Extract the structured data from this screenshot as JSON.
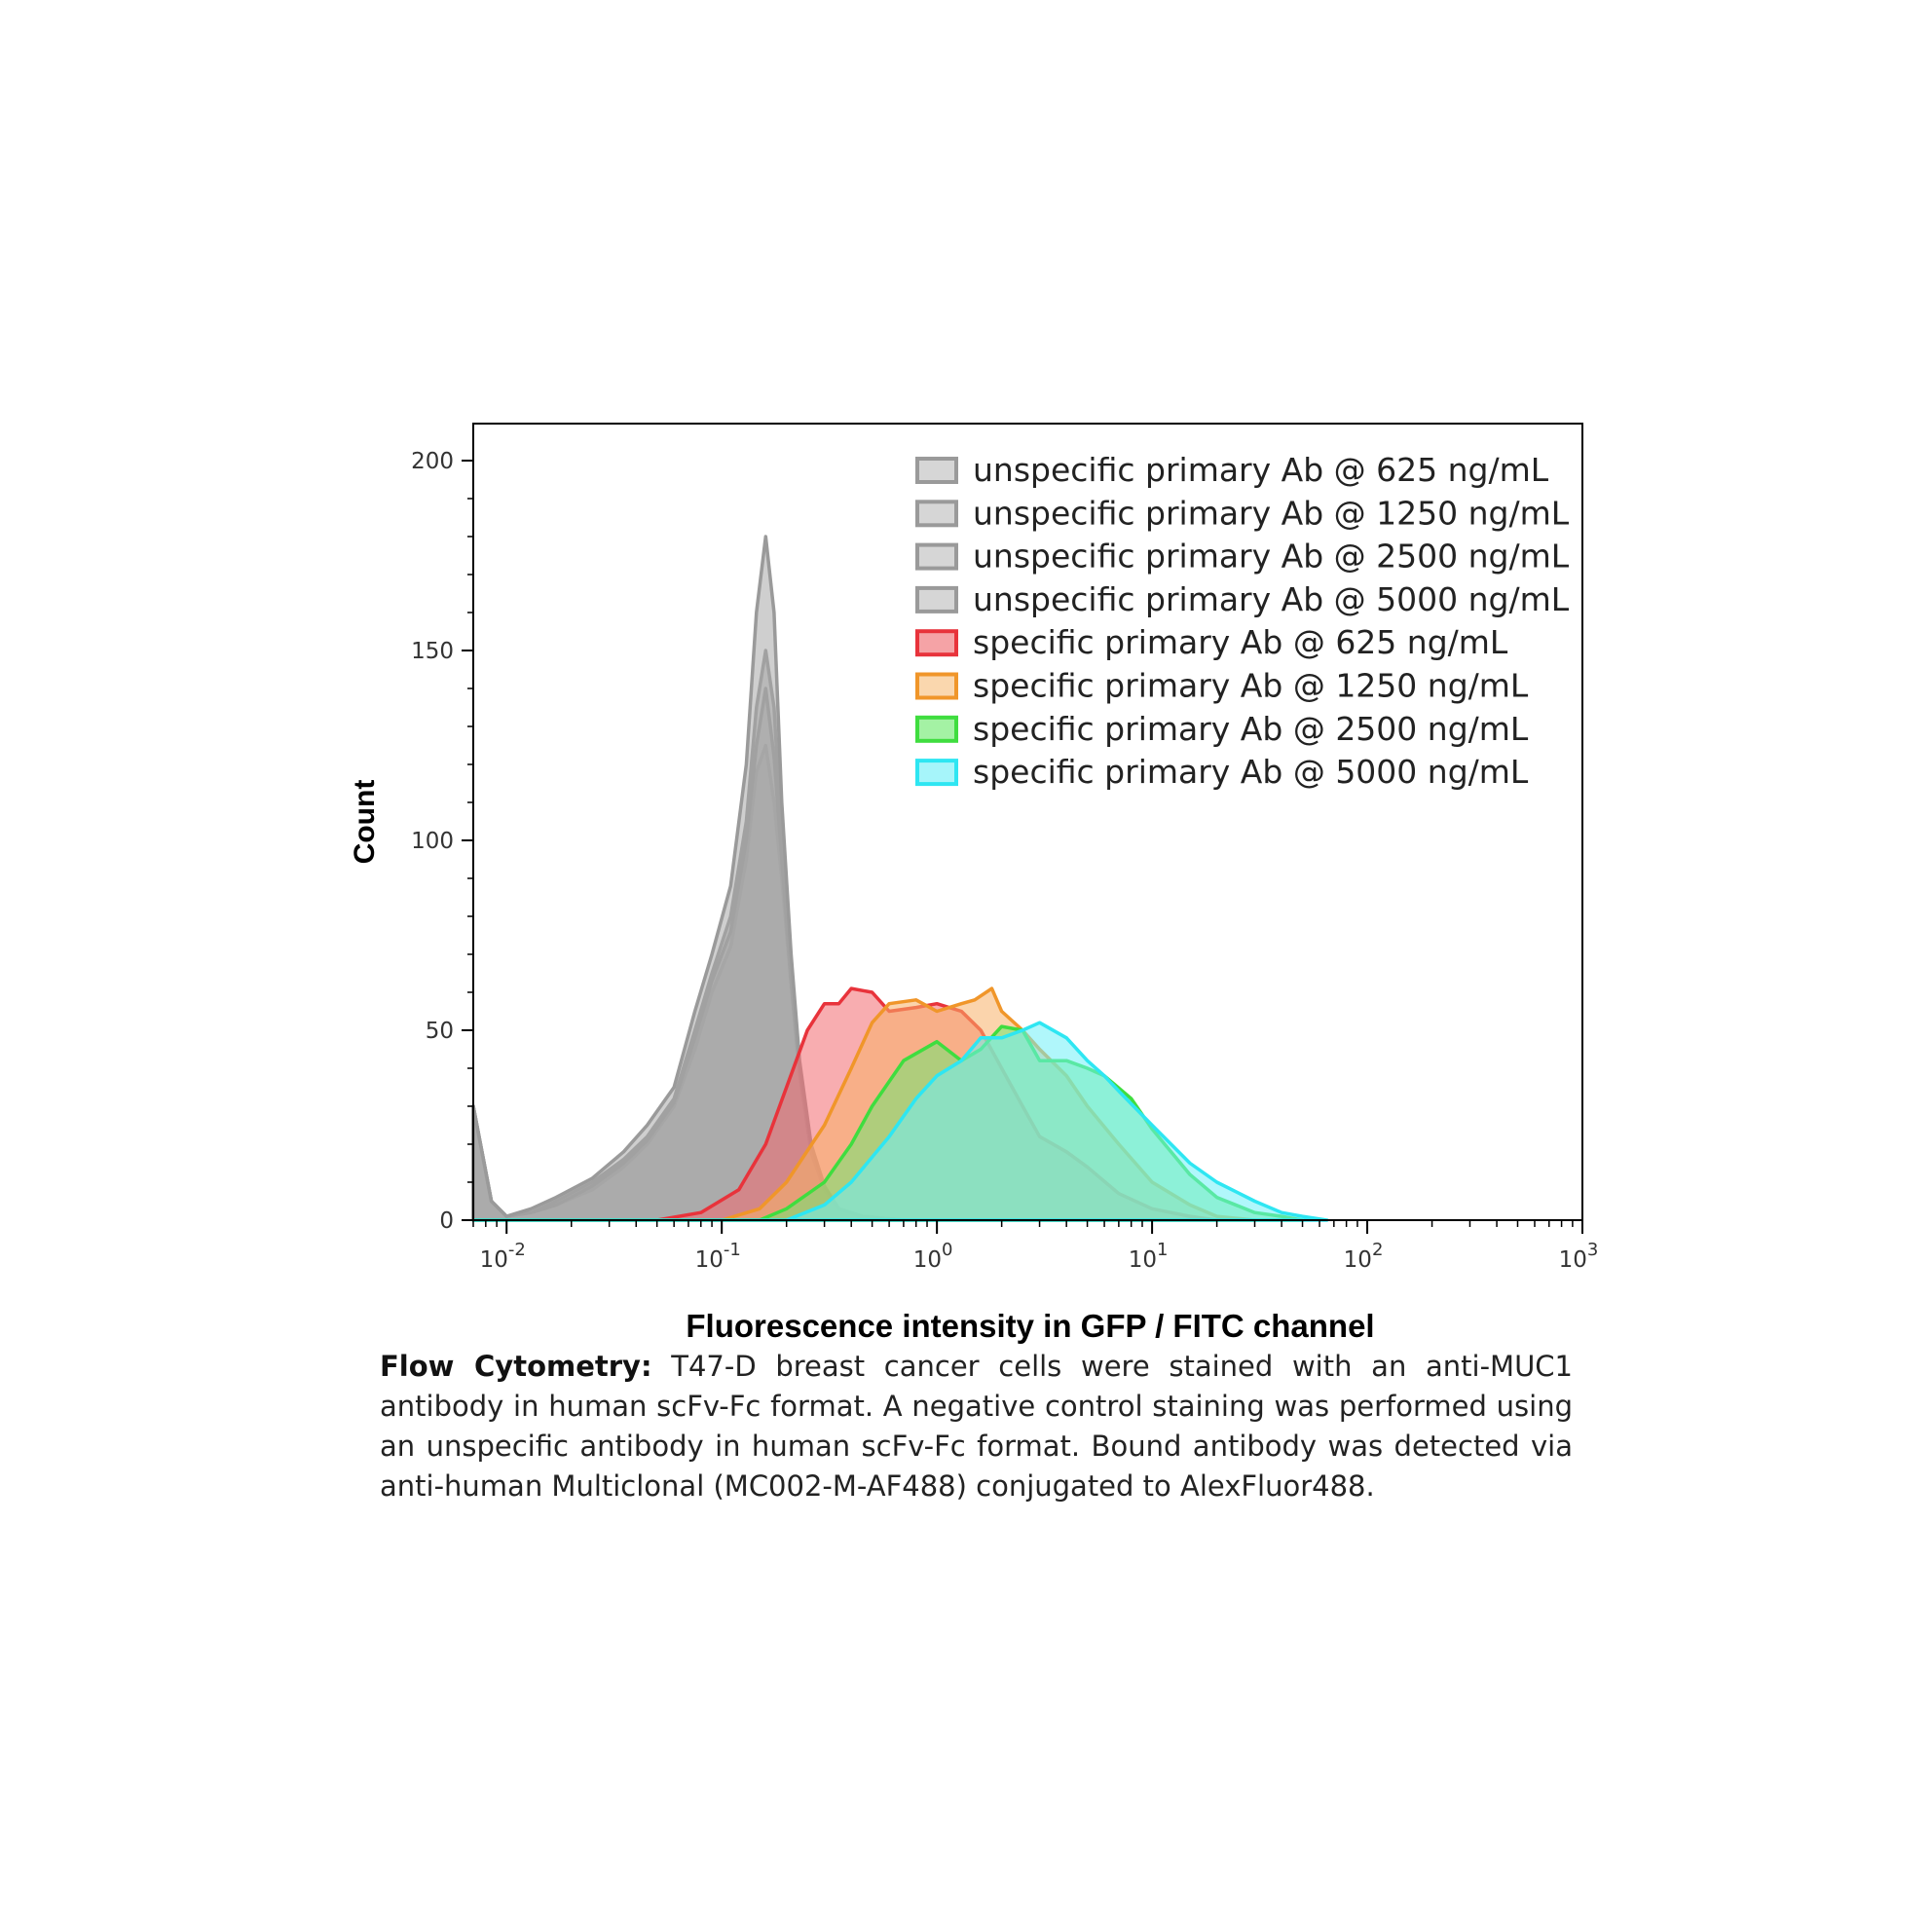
{
  "chart_data": {
    "type": "area",
    "xlabel": "Fluorescence intensity in GFP / FITC channel",
    "ylabel": "Count",
    "x_scale": "log",
    "xlim": [
      0.007,
      1000
    ],
    "ylim": [
      0,
      210
    ],
    "x_ticks": [
      {
        "value": 0.01,
        "base": "10",
        "exp": "-2"
      },
      {
        "value": 0.1,
        "base": "10",
        "exp": "-1"
      },
      {
        "value": 1,
        "base": "10",
        "exp": "0"
      },
      {
        "value": 10,
        "base": "10",
        "exp": "1"
      },
      {
        "value": 100,
        "base": "10",
        "exp": "2"
      },
      {
        "value": 1000,
        "base": "10",
        "exp": "3"
      }
    ],
    "y_ticks": [
      0,
      50,
      100,
      150,
      200
    ],
    "grid": false,
    "legend_position": "top-right",
    "series": [
      {
        "name": "unspecific primary Ab @ 625 ng/mL",
        "stroke": "#9a9a9a",
        "fill": "#a8a8a8",
        "legend_fill": "#d6d6d6",
        "points": [
          [
            0.007,
            30
          ],
          [
            0.0085,
            5
          ],
          [
            0.01,
            1
          ],
          [
            0.013,
            2
          ],
          [
            0.017,
            4
          ],
          [
            0.025,
            8
          ],
          [
            0.035,
            14
          ],
          [
            0.045,
            20
          ],
          [
            0.06,
            30
          ],
          [
            0.075,
            45
          ],
          [
            0.09,
            60
          ],
          [
            0.11,
            72
          ],
          [
            0.13,
            95
          ],
          [
            0.145,
            118
          ],
          [
            0.16,
            125
          ],
          [
            0.175,
            110
          ],
          [
            0.19,
            90
          ],
          [
            0.21,
            62
          ],
          [
            0.23,
            38
          ],
          [
            0.26,
            18
          ],
          [
            0.3,
            8
          ],
          [
            0.35,
            3
          ],
          [
            0.45,
            1
          ],
          [
            0.7,
            0
          ]
        ]
      },
      {
        "name": "unspecific primary Ab @ 1250 ng/mL",
        "stroke": "#9a9a9a",
        "fill": "#a8a8a8",
        "legend_fill": "#d6d6d6",
        "points": [
          [
            0.007,
            30
          ],
          [
            0.0085,
            5
          ],
          [
            0.01,
            1
          ],
          [
            0.013,
            2
          ],
          [
            0.017,
            5
          ],
          [
            0.025,
            10
          ],
          [
            0.035,
            16
          ],
          [
            0.045,
            22
          ],
          [
            0.06,
            32
          ],
          [
            0.075,
            50
          ],
          [
            0.09,
            65
          ],
          [
            0.11,
            80
          ],
          [
            0.13,
            105
          ],
          [
            0.145,
            135
          ],
          [
            0.16,
            150
          ],
          [
            0.175,
            135
          ],
          [
            0.19,
            100
          ],
          [
            0.21,
            65
          ],
          [
            0.23,
            40
          ],
          [
            0.26,
            18
          ],
          [
            0.3,
            8
          ],
          [
            0.35,
            3
          ],
          [
            0.45,
            1
          ],
          [
            0.7,
            0
          ]
        ]
      },
      {
        "name": "unspecific primary Ab @ 2500 ng/mL",
        "stroke": "#9a9a9a",
        "fill": "#a8a8a8",
        "legend_fill": "#d6d6d6",
        "points": [
          [
            0.007,
            30
          ],
          [
            0.0085,
            5
          ],
          [
            0.01,
            1
          ],
          [
            0.013,
            2
          ],
          [
            0.017,
            4
          ],
          [
            0.025,
            9
          ],
          [
            0.035,
            15
          ],
          [
            0.045,
            21
          ],
          [
            0.06,
            31
          ],
          [
            0.075,
            48
          ],
          [
            0.09,
            63
          ],
          [
            0.11,
            76
          ],
          [
            0.13,
            100
          ],
          [
            0.145,
            125
          ],
          [
            0.16,
            140
          ],
          [
            0.175,
            122
          ],
          [
            0.19,
            95
          ],
          [
            0.21,
            63
          ],
          [
            0.23,
            39
          ],
          [
            0.26,
            18
          ],
          [
            0.3,
            8
          ],
          [
            0.35,
            3
          ],
          [
            0.45,
            1
          ],
          [
            0.7,
            0
          ]
        ]
      },
      {
        "name": "unspecific primary Ab @ 5000 ng/mL",
        "stroke": "#9a9a9a",
        "fill": "#a8a8a8",
        "legend_fill": "#d6d6d6",
        "points": [
          [
            0.007,
            30
          ],
          [
            0.0085,
            5
          ],
          [
            0.01,
            1
          ],
          [
            0.013,
            3
          ],
          [
            0.017,
            6
          ],
          [
            0.025,
            11
          ],
          [
            0.035,
            18
          ],
          [
            0.045,
            25
          ],
          [
            0.06,
            35
          ],
          [
            0.075,
            55
          ],
          [
            0.09,
            70
          ],
          [
            0.11,
            88
          ],
          [
            0.13,
            120
          ],
          [
            0.145,
            160
          ],
          [
            0.16,
            180
          ],
          [
            0.175,
            160
          ],
          [
            0.19,
            110
          ],
          [
            0.21,
            70
          ],
          [
            0.23,
            42
          ],
          [
            0.26,
            20
          ],
          [
            0.3,
            9
          ],
          [
            0.35,
            3
          ],
          [
            0.45,
            1
          ],
          [
            0.7,
            0
          ]
        ]
      },
      {
        "name": "specific primary Ab @ 625 ng/mL",
        "stroke": "#e8333b",
        "fill": "#f26a6f",
        "legend_fill": "#f5a3a6",
        "points": [
          [
            0.007,
            0
          ],
          [
            0.05,
            0
          ],
          [
            0.08,
            2
          ],
          [
            0.12,
            8
          ],
          [
            0.16,
            20
          ],
          [
            0.2,
            35
          ],
          [
            0.25,
            50
          ],
          [
            0.3,
            57
          ],
          [
            0.35,
            57
          ],
          [
            0.4,
            61
          ],
          [
            0.5,
            60
          ],
          [
            0.6,
            55
          ],
          [
            0.8,
            56
          ],
          [
            1.0,
            57
          ],
          [
            1.3,
            55
          ],
          [
            1.6,
            50
          ],
          [
            2.0,
            40
          ],
          [
            2.5,
            30
          ],
          [
            3.0,
            22
          ],
          [
            4.0,
            18
          ],
          [
            5.0,
            14
          ],
          [
            7.0,
            7
          ],
          [
            10.0,
            3
          ],
          [
            15.0,
            1
          ],
          [
            20.0,
            0
          ]
        ]
      },
      {
        "name": "specific primary Ab @ 1250 ng/mL",
        "stroke": "#f0962a",
        "fill": "#f7b068",
        "legend_fill": "#fad7ae",
        "points": [
          [
            0.007,
            0
          ],
          [
            0.1,
            0
          ],
          [
            0.15,
            3
          ],
          [
            0.2,
            10
          ],
          [
            0.3,
            25
          ],
          [
            0.4,
            40
          ],
          [
            0.5,
            52
          ],
          [
            0.6,
            57
          ],
          [
            0.8,
            58
          ],
          [
            1.0,
            55
          ],
          [
            1.3,
            57
          ],
          [
            1.5,
            58
          ],
          [
            1.8,
            61
          ],
          [
            2.0,
            55
          ],
          [
            2.5,
            50
          ],
          [
            3.0,
            45
          ],
          [
            4.0,
            38
          ],
          [
            5.0,
            30
          ],
          [
            7.0,
            20
          ],
          [
            10.0,
            10
          ],
          [
            15.0,
            4
          ],
          [
            20.0,
            1
          ],
          [
            30.0,
            0
          ]
        ]
      },
      {
        "name": "specific primary Ab @ 2500 ng/mL",
        "stroke": "#3fdd3f",
        "fill": "#72e672",
        "legend_fill": "#a4f2a4",
        "points": [
          [
            0.007,
            0
          ],
          [
            0.15,
            0
          ],
          [
            0.2,
            3
          ],
          [
            0.3,
            10
          ],
          [
            0.4,
            20
          ],
          [
            0.5,
            30
          ],
          [
            0.7,
            42
          ],
          [
            1.0,
            47
          ],
          [
            1.3,
            42
          ],
          [
            1.6,
            45
          ],
          [
            2.0,
            51
          ],
          [
            2.5,
            50
          ],
          [
            3.0,
            42
          ],
          [
            4.0,
            42
          ],
          [
            5.0,
            40
          ],
          [
            6.0,
            38
          ],
          [
            8.0,
            32
          ],
          [
            10.0,
            24
          ],
          [
            15.0,
            12
          ],
          [
            20.0,
            6
          ],
          [
            30.0,
            2
          ],
          [
            40.0,
            1
          ],
          [
            50.0,
            0
          ]
        ]
      },
      {
        "name": "specific primary Ab @ 5000 ng/mL",
        "stroke": "#2ee6f2",
        "fill": "#70f0f7",
        "legend_fill": "#a6f5fa",
        "points": [
          [
            0.007,
            0
          ],
          [
            0.2,
            0
          ],
          [
            0.3,
            4
          ],
          [
            0.4,
            10
          ],
          [
            0.6,
            22
          ],
          [
            0.8,
            32
          ],
          [
            1.0,
            38
          ],
          [
            1.3,
            42
          ],
          [
            1.6,
            48
          ],
          [
            2.0,
            48
          ],
          [
            2.5,
            50
          ],
          [
            3.0,
            52
          ],
          [
            4.0,
            48
          ],
          [
            5.0,
            42
          ],
          [
            6.0,
            38
          ],
          [
            7.0,
            34
          ],
          [
            10.0,
            25
          ],
          [
            15.0,
            15
          ],
          [
            20.0,
            10
          ],
          [
            30.0,
            5
          ],
          [
            40.0,
            2
          ],
          [
            50.0,
            1
          ],
          [
            65.0,
            0
          ]
        ]
      }
    ]
  },
  "caption": {
    "bold_label": "Flow Cytometry:",
    "text": " T47-D breast cancer cells were stained with an anti-MUC1 antibody in human scFv-Fc format. A negative control staining was performed using an unspecific antibody in human scFv-Fc format. Bound antibody was detected via anti-human Multiclonal (MC002-M-AF488) conjugated to AlexFluor488."
  }
}
